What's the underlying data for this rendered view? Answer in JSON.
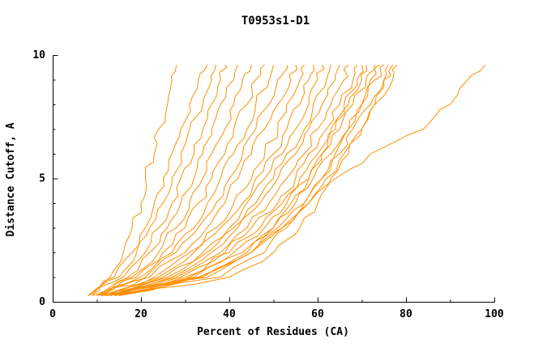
{
  "chart_data": {
    "type": "line",
    "title": "T0953s1-D1",
    "xlabel": "Percent of Residues (CA)",
    "ylabel": "Distance Cutoff, A",
    "xlim": [
      0,
      100
    ],
    "ylim": [
      0,
      10
    ],
    "xticks": [
      0,
      20,
      40,
      60,
      80,
      100
    ],
    "xminor_step": 10,
    "yticks": [
      0,
      5,
      10
    ],
    "yminor_step": 1,
    "grid": false,
    "legend": "none",
    "line_color": "#ff8f00",
    "axis_color": "#000000",
    "y_levels": [
      0.25,
      1,
      2,
      3,
      4,
      5,
      6,
      7,
      8,
      9,
      9.6
    ],
    "series": [
      [
        8,
        13,
        16,
        18,
        20,
        21,
        23,
        24,
        26,
        27,
        28
      ],
      [
        8,
        14,
        18,
        21,
        23,
        25,
        27,
        29,
        31,
        33,
        35
      ],
      [
        9,
        15,
        19,
        22,
        25,
        27,
        29,
        31,
        34,
        36,
        37
      ],
      [
        8,
        16,
        21,
        24,
        27,
        29,
        32,
        34,
        36,
        38,
        39
      ],
      [
        10,
        17,
        22,
        26,
        29,
        32,
        34,
        36,
        38,
        41,
        42
      ],
      [
        9,
        18,
        24,
        28,
        31,
        34,
        36,
        39,
        41,
        43,
        45
      ],
      [
        10,
        19,
        25,
        30,
        33,
        36,
        39,
        41,
        44,
        46,
        48
      ],
      [
        11,
        20,
        27,
        32,
        35,
        38,
        41,
        44,
        46,
        49,
        50
      ],
      [
        10,
        21,
        28,
        33,
        37,
        40,
        43,
        46,
        49,
        51,
        53
      ],
      [
        11,
        22,
        30,
        35,
        39,
        42,
        45,
        48,
        51,
        54,
        55
      ],
      [
        12,
        23,
        31,
        37,
        41,
        45,
        48,
        51,
        53,
        56,
        57
      ],
      [
        11,
        24,
        32,
        38,
        43,
        46,
        50,
        53,
        56,
        58,
        59
      ],
      [
        12,
        25,
        34,
        40,
        44,
        48,
        52,
        55,
        58,
        60,
        61
      ],
      [
        13,
        26,
        35,
        41,
        46,
        50,
        53,
        57,
        59,
        62,
        63
      ],
      [
        12,
        27,
        36,
        42,
        47,
        51,
        55,
        58,
        61,
        64,
        65
      ],
      [
        13,
        28,
        38,
        44,
        49,
        53,
        57,
        60,
        63,
        66,
        67
      ],
      [
        14,
        29,
        39,
        45,
        51,
        55,
        58,
        62,
        65,
        68,
        69
      ],
      [
        13,
        30,
        40,
        47,
        52,
        56,
        60,
        63,
        67,
        70,
        71
      ],
      [
        14,
        31,
        41,
        48,
        53,
        58,
        61,
        65,
        68,
        71,
        73
      ],
      [
        15,
        32,
        43,
        50,
        55,
        59,
        63,
        67,
        70,
        73,
        75
      ],
      [
        14,
        33,
        44,
        51,
        57,
        61,
        65,
        68,
        72,
        75,
        77
      ],
      [
        15,
        34,
        45,
        52,
        58,
        62,
        66,
        70,
        73,
        77,
        78
      ],
      [
        10,
        35,
        45,
        50,
        54,
        58,
        61,
        64,
        66,
        69,
        70
      ],
      [
        11,
        38,
        48,
        53,
        57,
        61,
        64,
        67,
        70,
        72,
        74
      ],
      [
        12,
        40,
        50,
        56,
        60,
        63,
        67,
        70,
        73,
        75,
        76
      ],
      [
        13,
        33,
        45,
        52,
        58,
        64,
        72,
        84,
        90,
        94,
        98
      ]
    ]
  }
}
